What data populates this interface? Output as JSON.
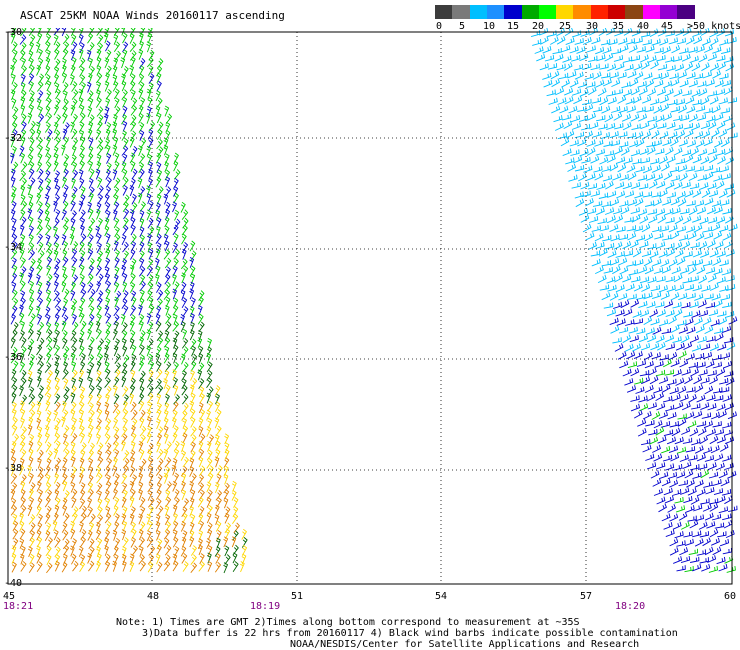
{
  "title": "ASCAT 25KM NOAA Winds 20160117 ascending",
  "scale": {
    "labels": [
      "0",
      "5",
      "10",
      "15",
      "20",
      "25",
      "30",
      "35",
      "40",
      "45",
      ">50 knots"
    ],
    "colors": [
      "#3c3c3c",
      "#7a7a7a",
      "#00bfff",
      "#1e90ff",
      "#0000cd",
      "#00aa00",
      "#00ff00",
      "#ffd700",
      "#ff8c00",
      "#ff2200",
      "#cc0000",
      "#8b4513",
      "#ff00ff",
      "#9400d3",
      "#4b0082"
    ]
  },
  "axes": {
    "lat_labels": [
      "-30",
      "-32",
      "-34",
      "-36",
      "-38",
      "-40"
    ],
    "lon_labels": [
      "45",
      "48",
      "51",
      "54",
      "57",
      "60"
    ]
  },
  "times": {
    "t1": "18:21",
    "t2": "18:19",
    "t3": "18:20"
  },
  "notes": {
    "line1": "Note: 1) Times are GMT 2)Times along bottom correspond to measurement at ~35S",
    "line2": "3)Data buffer is 22 hrs from 20160117 4) Black wind barbs indicate possible contamination",
    "line3": "NOAA/NESDIS/Center for Satellite Applications and Research"
  },
  "colors": {
    "grid": "#000000",
    "time_label": "#800080",
    "speed_5_10": "#00bfff",
    "speed_10_15": "#0000cd",
    "speed_15_20": "#00cc00",
    "speed_20_25": "#ffd700",
    "speed_25_30": "#e08000",
    "speed_dark_green": "#006400"
  }
}
